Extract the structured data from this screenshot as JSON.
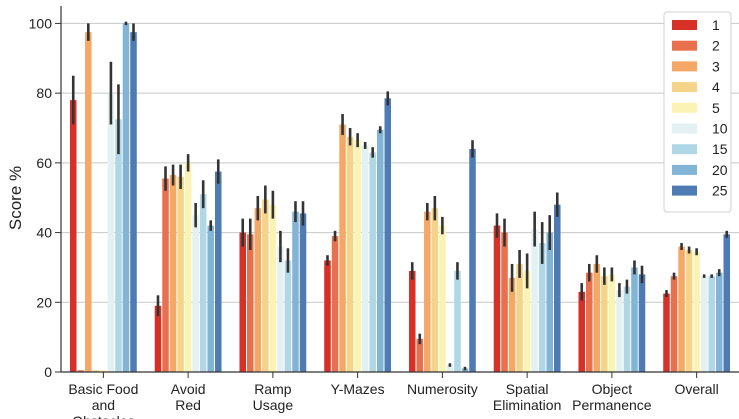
{
  "chart_data": {
    "type": "bar",
    "ylabel": "Score %",
    "xlabel": "",
    "ylim": [
      0,
      105
    ],
    "yticks": [
      0,
      20,
      40,
      60,
      80,
      100
    ],
    "grid": "horizontal",
    "legend_position": "top-right",
    "categories": [
      [
        "Basic Food",
        "and",
        "Obstacles"
      ],
      [
        "Avoid",
        "Red"
      ],
      [
        "Ramp",
        "Usage"
      ],
      [
        "Y-Mazes"
      ],
      [
        "Numerosity"
      ],
      [
        "Spatial",
        "Elimination"
      ],
      [
        "Object",
        "Permanence"
      ],
      [
        "Overall"
      ]
    ],
    "series": [
      {
        "name": "1",
        "color": "#d73027",
        "values": [
          78,
          19,
          40,
          32,
          29,
          42,
          23,
          22.5
        ],
        "errors": [
          7,
          3,
          4,
          1.5,
          2.5,
          3.5,
          2.5,
          1
        ]
      },
      {
        "name": "2",
        "color": "#e8704d",
        "values": [
          0.5,
          55.5,
          39.5,
          39,
          9.5,
          40,
          28.5,
          27.5
        ],
        "errors": [
          0,
          3.5,
          4.5,
          1.5,
          1.5,
          4,
          2.5,
          1
        ]
      },
      {
        "name": "3",
        "color": "#f5a865",
        "values": [
          97.5,
          56.5,
          47,
          71,
          46,
          27,
          31,
          36
        ],
        "errors": [
          2.5,
          3,
          3.5,
          3,
          2.5,
          4,
          2.5,
          1
        ]
      },
      {
        "name": "4",
        "color": "#f5d489",
        "values": [
          0.5,
          56,
          49.5,
          67.5,
          47,
          31,
          27.5,
          35
        ],
        "errors": [
          0,
          3.5,
          4,
          2.5,
          3.5,
          4,
          2.5,
          1
        ]
      },
      {
        "name": "5",
        "color": "#fbf3b3",
        "values": [
          0.5,
          60,
          48,
          66.5,
          42,
          29,
          28,
          34.5
        ],
        "errors": [
          0,
          2.5,
          4,
          2,
          2.5,
          5,
          2,
          1
        ]
      },
      {
        "name": "10",
        "color": "#e3f1f2",
        "values": [
          80,
          45,
          36,
          65,
          2,
          41,
          23.5,
          27.5
        ],
        "errors": [
          9,
          3.5,
          4.5,
          1,
          0.5,
          5,
          2,
          0.5
        ]
      },
      {
        "name": "15",
        "color": "#b0d7e6",
        "values": [
          72.5,
          51,
          32,
          63,
          29,
          37,
          24.5,
          27.5
        ],
        "errors": [
          10,
          4,
          3.5,
          1.5,
          2.5,
          6,
          2,
          0.5
        ]
      },
      {
        "name": "20",
        "color": "#81b4d5",
        "values": [
          100,
          42,
          46,
          69.5,
          1,
          40,
          30,
          28.5
        ],
        "errors": [
          0.5,
          1.5,
          3,
          1,
          0.5,
          5,
          2,
          1
        ]
      },
      {
        "name": "25",
        "color": "#4e7bb4",
        "values": [
          97.5,
          57.5,
          45.5,
          78.5,
          64,
          48,
          28,
          39.5
        ],
        "errors": [
          2.5,
          3.5,
          3.5,
          2,
          2.5,
          3.5,
          2.5,
          1
        ]
      }
    ]
  }
}
